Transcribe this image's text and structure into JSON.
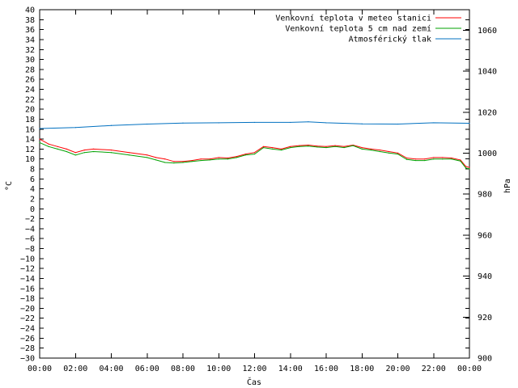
{
  "chart_data": {
    "type": "line",
    "title": "",
    "xlabel": "Čas",
    "ylabel_left": "°C",
    "ylabel_right": "hPa",
    "x_ticks": [
      "00:00",
      "02:00",
      "04:00",
      "06:00",
      "08:00",
      "10:00",
      "12:00",
      "14:00",
      "16:00",
      "18:00",
      "20:00",
      "22:00",
      "00:00"
    ],
    "x_range_hours": [
      0,
      24
    ],
    "ylim_left": [
      -30,
      40
    ],
    "y_ticks_left": [
      "40",
      "38",
      "36",
      "34",
      "32",
      "30",
      "28",
      "26",
      "24",
      "22",
      "20",
      "18",
      "16",
      "14",
      "12",
      "10",
      "8",
      "6",
      "4",
      "2",
      "0",
      "−2",
      "−4",
      "−6",
      "−8",
      "−10",
      "−12",
      "−14",
      "−16",
      "−18",
      "−20",
      "−22",
      "−24",
      "−26",
      "−28",
      "−30"
    ],
    "ylim_right": [
      900,
      1070
    ],
    "y_ticks_right": [
      "1060",
      "1040",
      "1020",
      "1000",
      "980",
      "960",
      "940",
      "920",
      "900"
    ],
    "legend_position": "top-right",
    "grid": false,
    "series": [
      {
        "name": "Venkovní teplota v meteo stanici",
        "axis": "left",
        "color": "#ff0000",
        "x_hours": [
          0,
          0.5,
          1,
          1.5,
          2,
          2.5,
          3,
          4,
          5,
          6,
          6.5,
          7,
          7.5,
          8,
          8.5,
          9,
          9.5,
          10,
          10.5,
          11,
          11.5,
          12,
          12.5,
          13,
          13.5,
          14,
          14.5,
          15,
          15.5,
          16,
          16.5,
          17,
          17.5,
          18,
          18.5,
          19,
          19.5,
          20,
          20.5,
          21,
          21.5,
          22,
          22.5,
          23,
          23.5,
          23.8,
          24
        ],
        "values": [
          14,
          13,
          12.5,
          12,
          11.3,
          11.8,
          12,
          11.8,
          11.3,
          10.8,
          10.3,
          10,
          9.5,
          9.5,
          9.7,
          10,
          10,
          10.3,
          10.2,
          10.5,
          11,
          11.3,
          12.5,
          12.3,
          12,
          12.5,
          12.7,
          12.8,
          12.6,
          12.5,
          12.7,
          12.5,
          12.8,
          12.3,
          12,
          11.8,
          11.5,
          11.2,
          10.2,
          10,
          10,
          10.3,
          10.3,
          10.2,
          9.8,
          8.5,
          8.3
        ]
      },
      {
        "name": "Venkovní teplota 5 cm nad zemí",
        "axis": "left",
        "color": "#00a000",
        "x_hours": [
          0,
          0.5,
          1,
          1.5,
          2,
          2.5,
          3,
          4,
          5,
          6,
          6.5,
          7,
          7.5,
          8,
          8.5,
          9,
          9.5,
          10,
          10.5,
          11,
          11.5,
          12,
          12.5,
          13,
          13.5,
          14,
          14.5,
          15,
          15.5,
          16,
          16.5,
          17,
          17.5,
          18,
          18.5,
          19,
          19.5,
          20,
          20.5,
          21,
          21.5,
          22,
          22.5,
          23,
          23.5,
          23.8,
          24
        ],
        "values": [
          13.3,
          12.5,
          12,
          11.5,
          10.8,
          11.3,
          11.5,
          11.3,
          10.8,
          10.3,
          9.8,
          9.3,
          9.2,
          9.3,
          9.5,
          9.7,
          9.8,
          10,
          10,
          10.3,
          10.8,
          11,
          12.3,
          12,
          11.8,
          12.3,
          12.5,
          12.6,
          12.4,
          12.3,
          12.5,
          12.3,
          12.7,
          12,
          11.8,
          11.5,
          11.2,
          11,
          9.9,
          9.7,
          9.7,
          10,
          10,
          10,
          9.6,
          8.2,
          8.0
        ]
      },
      {
        "name": "Atmosférický tlak",
        "axis": "right",
        "color": "#0070c0",
        "x_hours": [
          0,
          2,
          4,
          6,
          8,
          10,
          12,
          14,
          15,
          16,
          18,
          20,
          22,
          24
        ],
        "values": [
          1012,
          1012.5,
          1013.5,
          1014.2,
          1014.7,
          1014.8,
          1015,
          1015,
          1015.3,
          1014.8,
          1014.3,
          1014.2,
          1014.8,
          1014.6
        ]
      }
    ]
  }
}
